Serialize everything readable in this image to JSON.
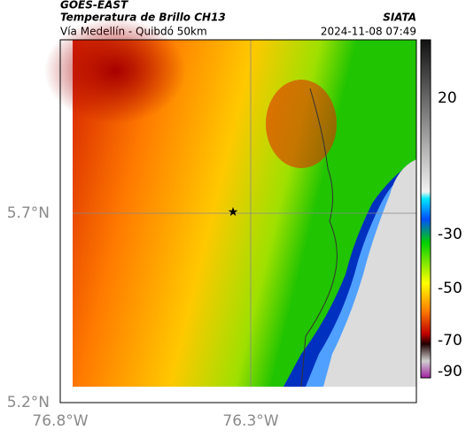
{
  "header": {
    "title": "GOES-EAST",
    "subtitle": "Temperatura de Brillo CH13",
    "source": "SIATA",
    "region": "Vía Medellín - Quibdó 50km",
    "timestamp": "2024-11-08 07:49"
  },
  "map": {
    "lat_labels": [
      "5.7°N",
      "5.2°N"
    ],
    "lon_labels": [
      "76.8°W",
      "76.3°W"
    ]
  },
  "colorbar": {
    "tick_labels": [
      "20",
      "-30",
      "-50",
      "-70",
      "-90"
    ]
  }
}
